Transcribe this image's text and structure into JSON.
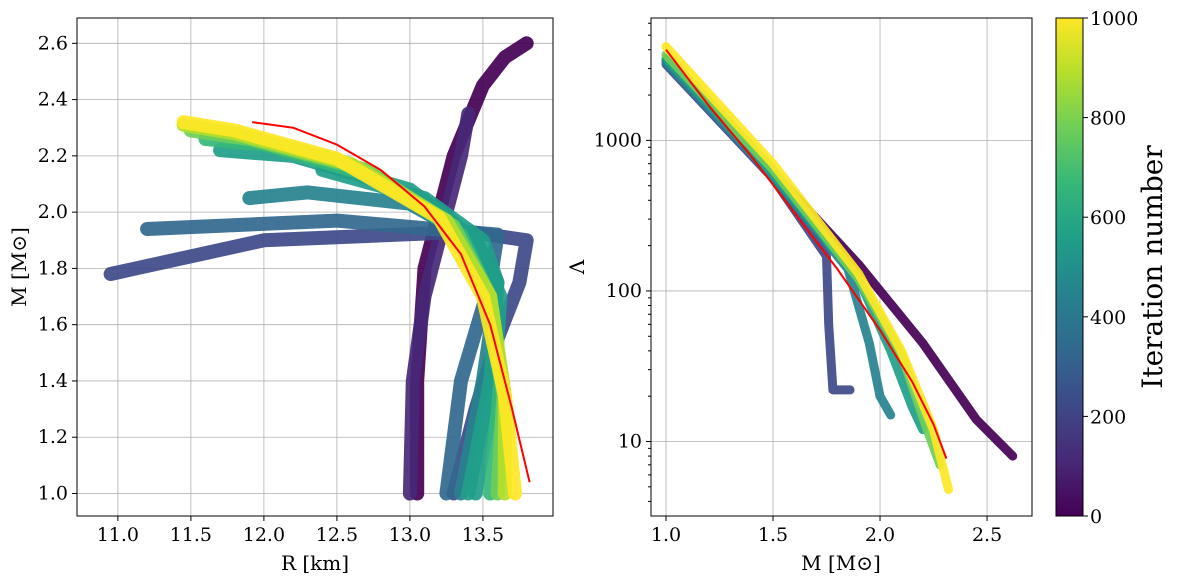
{
  "chart_data": [
    {
      "type": "line",
      "panel": "left",
      "title": "",
      "xlabel": "R [km]",
      "ylabel": "M [M⊙]",
      "xlim": [
        10.72,
        13.98
      ],
      "ylim": [
        0.92,
        2.69
      ],
      "xticks": [
        11.0,
        11.5,
        12.0,
        12.5,
        13.0,
        13.5
      ],
      "xtick_labels": [
        "11.0",
        "11.5",
        "12.0",
        "12.5",
        "13.0",
        "13.5"
      ],
      "yticks": [
        1.0,
        1.2,
        1.4,
        1.6,
        1.8,
        2.0,
        2.2,
        2.4,
        2.6
      ],
      "ytick_labels": [
        "1.0",
        "1.2",
        "1.4",
        "1.6",
        "1.8",
        "2.0",
        "2.2",
        "2.4",
        "2.6"
      ],
      "grid": true,
      "series_note": "colored curves per iteration (0-1000), red target curve",
      "series": [
        {
          "name": "iter 0",
          "iteration": 0,
          "x": [
            13.05,
            13.05,
            13.1,
            13.3,
            13.5,
            13.65,
            13.8
          ],
          "y": [
            1.0,
            1.4,
            1.8,
            2.2,
            2.45,
            2.55,
            2.6
          ]
        },
        {
          "name": "iter 100",
          "iteration": 100,
          "x": [
            13.0,
            13.02,
            13.1,
            13.25,
            13.35,
            13.4
          ],
          "y": [
            1.0,
            1.4,
            1.7,
            2.0,
            2.2,
            2.35
          ]
        },
        {
          "name": "iter 200",
          "iteration": 200,
          "x": [
            13.3,
            13.45,
            13.6,
            13.75,
            13.8,
            13.4,
            12.0,
            10.95
          ],
          "y": [
            1.0,
            1.3,
            1.55,
            1.75,
            1.9,
            1.93,
            1.9,
            1.78
          ]
        },
        {
          "name": "iter 300",
          "iteration": 300,
          "x": [
            13.25,
            13.35,
            13.55,
            13.6,
            12.5,
            11.2
          ],
          "y": [
            1.0,
            1.4,
            1.75,
            1.92,
            1.97,
            1.94
          ]
        },
        {
          "name": "iter 400",
          "iteration": 400,
          "x": [
            13.35,
            13.5,
            13.6,
            13.45,
            13.0,
            12.3,
            11.9
          ],
          "y": [
            1.0,
            1.4,
            1.75,
            1.9,
            2.03,
            2.07,
            2.05
          ]
        },
        {
          "name": "iter 500",
          "iteration": 500,
          "x": [
            13.4,
            13.55,
            13.6,
            13.5,
            13.1,
            12.4
          ],
          "y": [
            1.0,
            1.4,
            1.75,
            1.9,
            2.05,
            2.15
          ]
        },
        {
          "name": "iter 600",
          "iteration": 600,
          "x": [
            13.45,
            13.58,
            13.62,
            13.45,
            13.0,
            12.2,
            11.7
          ],
          "y": [
            1.0,
            1.4,
            1.7,
            1.9,
            2.08,
            2.2,
            2.22
          ]
        },
        {
          "name": "iter 700",
          "iteration": 700,
          "x": [
            13.55,
            13.62,
            13.55,
            13.35,
            12.8,
            12.0,
            11.6
          ],
          "y": [
            1.0,
            1.4,
            1.7,
            1.92,
            2.12,
            2.24,
            2.26
          ]
        },
        {
          "name": "iter 800",
          "iteration": 800,
          "x": [
            13.6,
            13.64,
            13.55,
            13.3,
            12.7,
            11.9,
            11.5
          ],
          "y": [
            1.0,
            1.35,
            1.7,
            1.95,
            2.15,
            2.26,
            2.29
          ]
        },
        {
          "name": "iter 900",
          "iteration": 900,
          "x": [
            13.65,
            13.65,
            13.55,
            13.25,
            12.6,
            11.8,
            11.45
          ],
          "y": [
            1.0,
            1.35,
            1.7,
            1.97,
            2.17,
            2.28,
            2.31
          ]
        },
        {
          "name": "iter 1000",
          "iteration": 1000,
          "x": [
            13.72,
            13.65,
            13.5,
            13.2,
            12.5,
            11.8,
            11.45
          ],
          "y": [
            1.0,
            1.35,
            1.7,
            1.98,
            2.19,
            2.29,
            2.32
          ]
        }
      ],
      "target": {
        "name": "target",
        "color": "#ff0000",
        "x": [
          13.82,
          13.7,
          13.55,
          13.35,
          13.1,
          12.8,
          12.5,
          12.2,
          11.92
        ],
        "y": [
          1.04,
          1.3,
          1.6,
          1.85,
          2.02,
          2.15,
          2.24,
          2.3,
          2.32
        ]
      }
    },
    {
      "type": "line",
      "panel": "right",
      "title": "",
      "xlabel": "M [M⊙]",
      "ylabel": "Λ",
      "xlim": [
        0.93,
        2.71
      ],
      "ylim": [
        3.2,
        6500
      ],
      "yscale": "log",
      "xticks": [
        1.0,
        1.5,
        2.0,
        2.5
      ],
      "xtick_labels": [
        "1.0",
        "1.5",
        "2.0",
        "2.5"
      ],
      "yticks": [
        10,
        100,
        1000
      ],
      "ytick_labels": [
        "10",
        "100",
        "1000"
      ],
      "grid": true,
      "series": [
        {
          "name": "iter 0",
          "iteration": 0,
          "x": [
            1.0,
            1.5,
            1.9,
            2.2,
            2.45,
            2.62
          ],
          "y": [
            3400,
            620,
            150,
            45,
            14,
            8
          ]
        },
        {
          "name": "iter 200",
          "iteration": 200,
          "x": [
            1.0,
            1.5,
            1.75,
            1.76,
            1.78,
            1.86
          ],
          "y": [
            3200,
            560,
            170,
            60,
            22,
            22
          ]
        },
        {
          "name": "iter 400",
          "iteration": 400,
          "x": [
            1.0,
            1.5,
            1.85,
            1.95,
            2.0,
            2.05
          ],
          "y": [
            3300,
            580,
            140,
            45,
            20,
            15
          ]
        },
        {
          "name": "iter 600",
          "iteration": 600,
          "x": [
            1.0,
            1.5,
            1.9,
            2.05,
            2.15,
            2.2
          ],
          "y": [
            3500,
            600,
            120,
            40,
            17,
            12
          ]
        },
        {
          "name": "iter 800",
          "iteration": 800,
          "x": [
            1.0,
            1.5,
            1.9,
            2.1,
            2.22,
            2.28
          ],
          "y": [
            3700,
            640,
            120,
            38,
            12,
            7
          ]
        },
        {
          "name": "iter 1000",
          "iteration": 1000,
          "x": [
            1.0,
            1.5,
            1.9,
            2.1,
            2.25,
            2.32
          ],
          "y": [
            4200,
            700,
            130,
            40,
            12,
            4.8
          ]
        }
      ],
      "target": {
        "name": "target",
        "color": "#ff0000",
        "x": [
          1.0,
          1.2,
          1.4,
          1.6,
          1.8,
          2.0,
          2.15,
          2.25,
          2.31
        ],
        "y": [
          4000,
          1700,
          780,
          330,
          140,
          55,
          25,
          13,
          7.7
        ]
      }
    }
  ],
  "colorbar": {
    "label": "Iteration number",
    "min": 0,
    "max": 1000,
    "ticks": [
      0,
      200,
      400,
      600,
      800,
      1000
    ],
    "tick_labels": [
      "0",
      "200",
      "400",
      "600",
      "800",
      "1000"
    ],
    "colormap": [
      "#440154",
      "#482878",
      "#3e4989",
      "#31688e",
      "#26828e",
      "#1f9e89",
      "#35b779",
      "#6ece58",
      "#b5de2b",
      "#fde725"
    ]
  }
}
